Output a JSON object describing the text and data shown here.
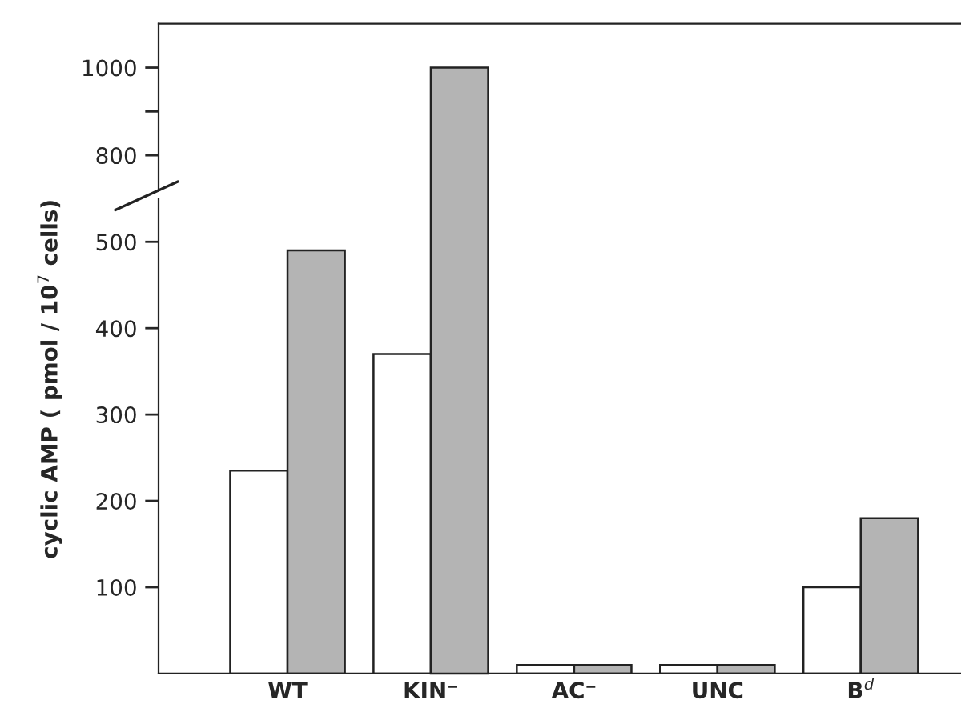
{
  "chart_data": [
    {
      "type": "bar",
      "tick_labels": "y",
      "series": [
        {
          "color": "#ffffff",
          "values": [
            null,
            null,
            null,
            null,
            null
          ]
        },
        {
          "color": "#b4b4b4",
          "values": [
            null,
            1000,
            null,
            null,
            null
          ]
        }
      ],
      "ylim": [
        720,
        1100
      ],
      "yticks": [
        800,
        {
          "value": 900,
          "label": null
        },
        1000
      ]
    },
    {
      "type": "bar",
      "ylabel": "cyclic AMP ( pmol / 10$^{7}$ cells)",
      "categories": [
        "WT",
        "KIN⁻",
        "AC⁻",
        "UNC",
        "B$^{d}$"
      ],
      "series": [
        {
          "color": "#ffffff",
          "values": [
            235,
            370,
            10,
            10,
            100
          ]
        },
        {
          "color": "#b4b4b4",
          "values": [
            490,
            null,
            10,
            10,
            180
          ]
        }
      ],
      "ylim": [
        0,
        550
      ],
      "yticks": [
        100,
        200,
        300,
        400,
        500
      ]
    }
  ]
}
